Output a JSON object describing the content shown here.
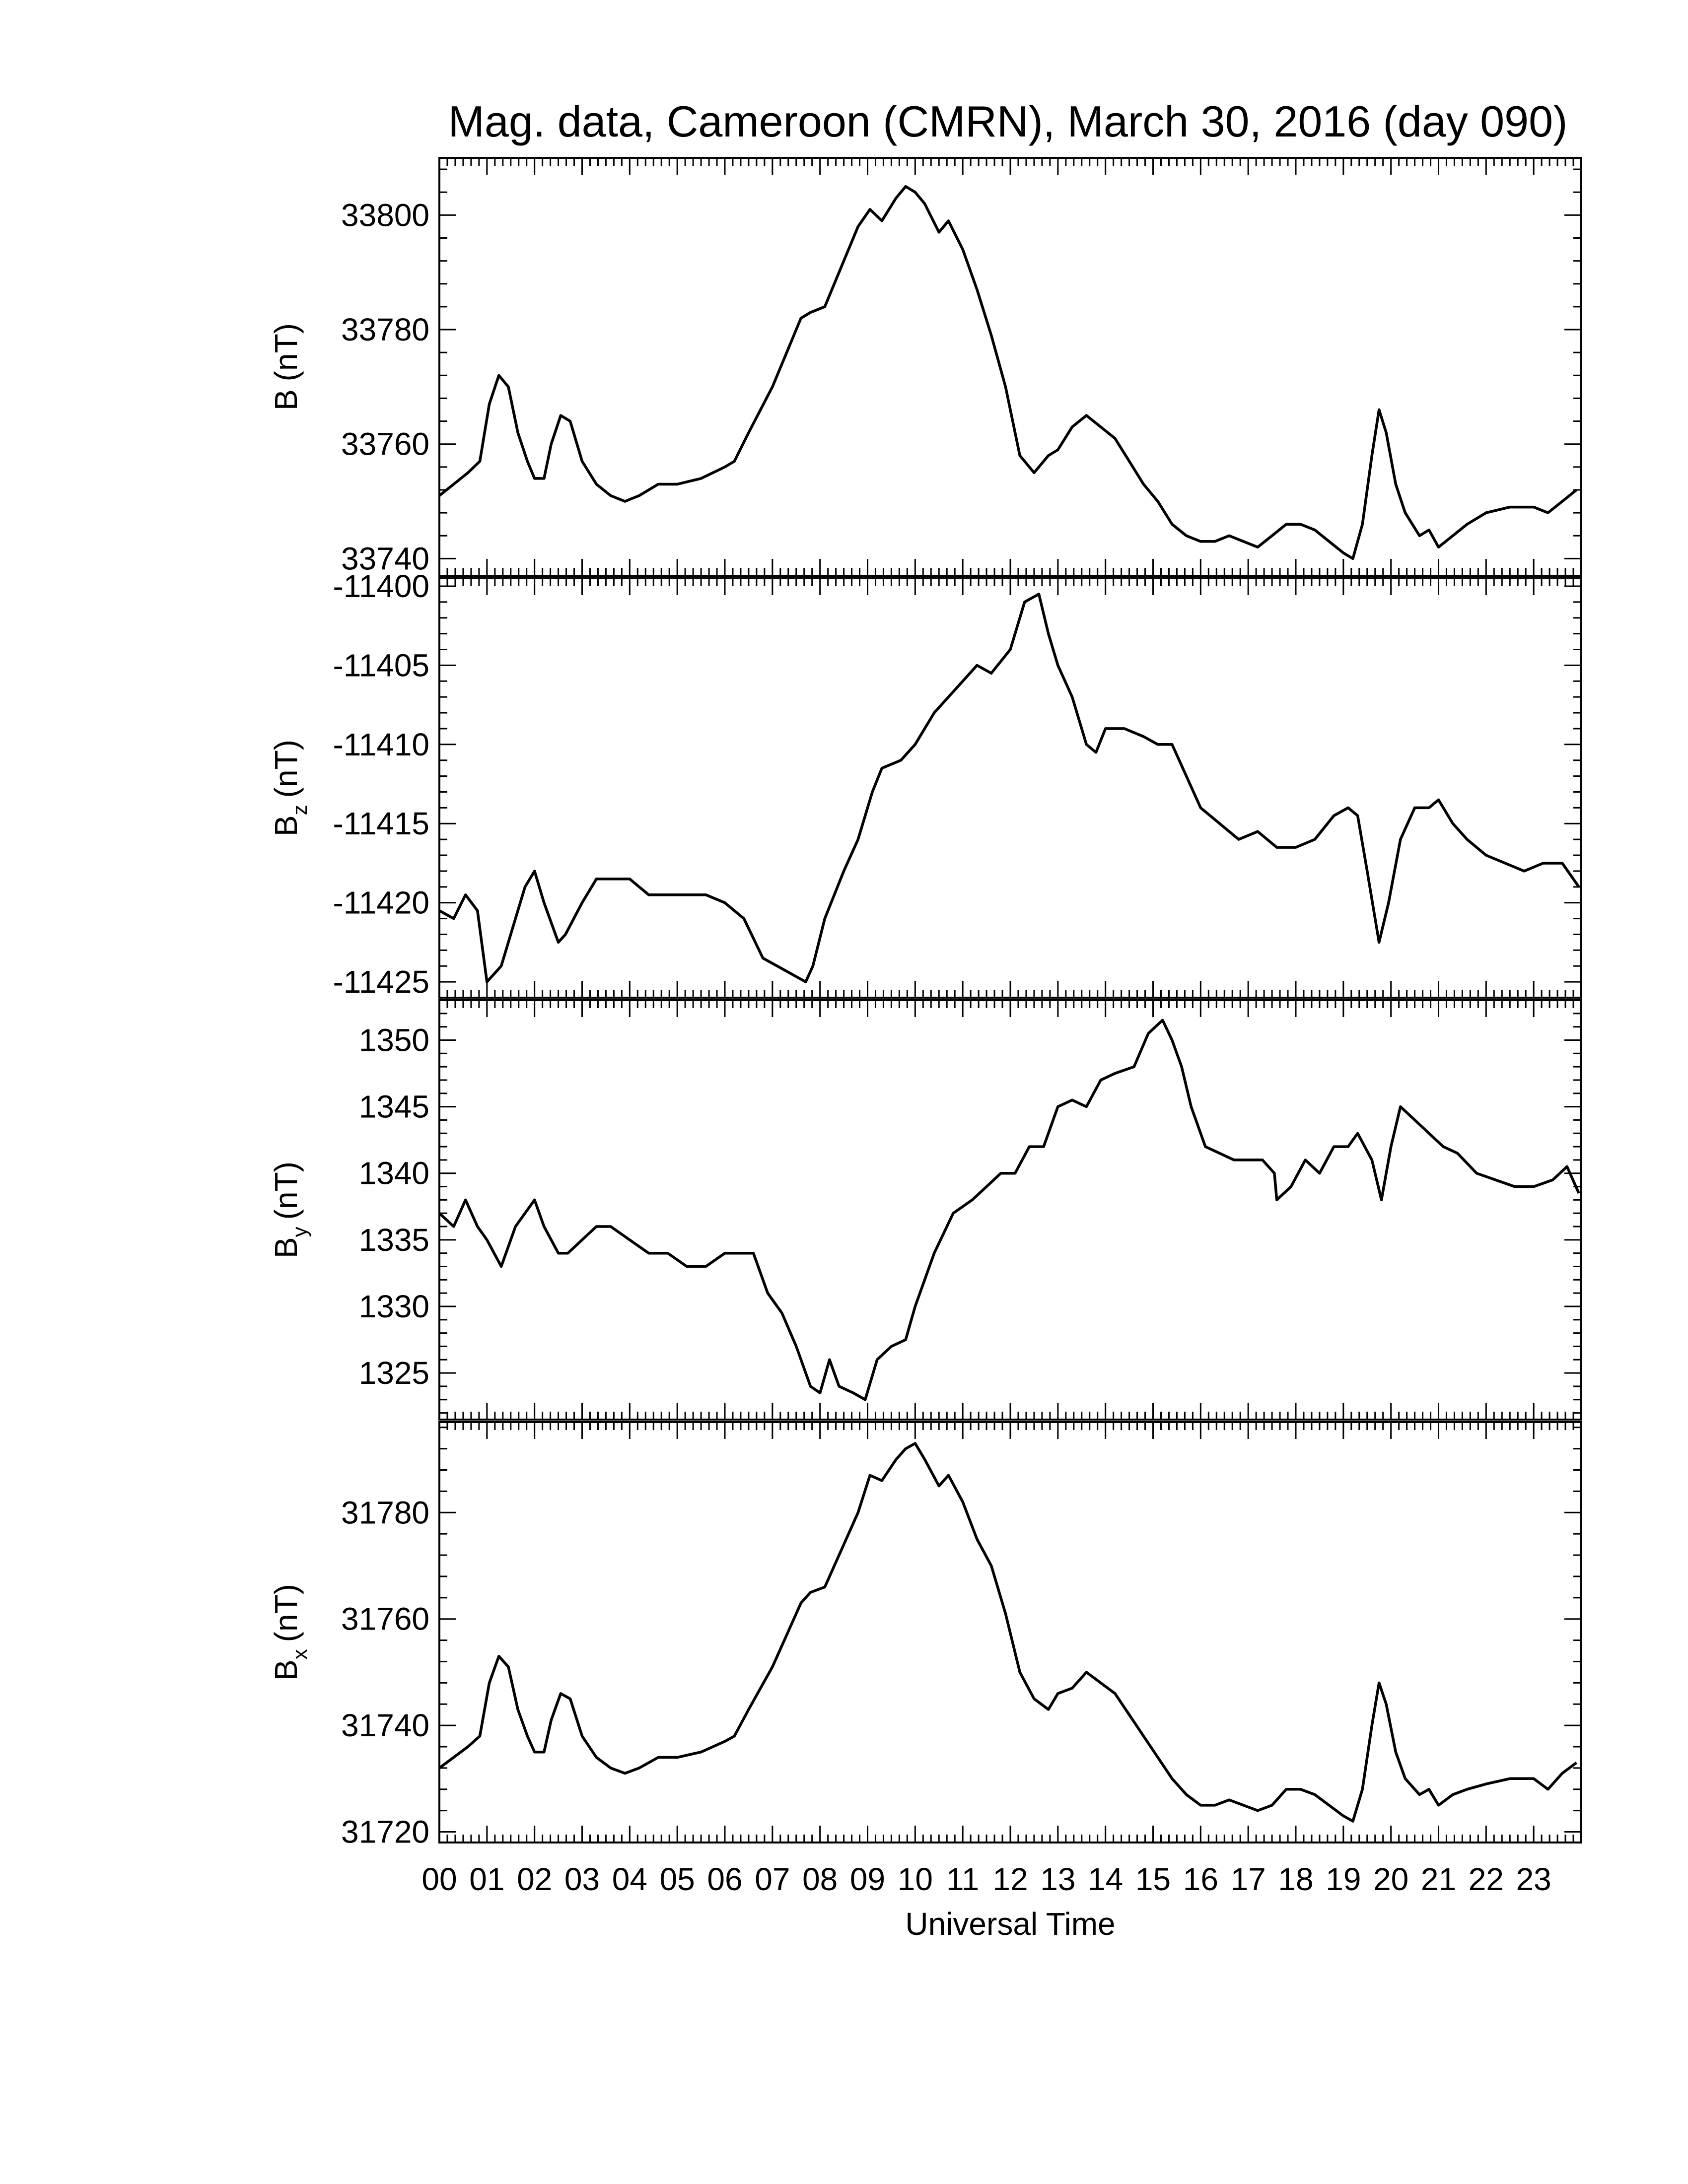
{
  "figure": {
    "title": "Mag. data, Cameroon (CMRN), March 30, 2016 (day 090)",
    "xlabel": "Universal Time",
    "x_tick_labels": [
      "00",
      "01",
      "02",
      "03",
      "04",
      "05",
      "06",
      "07",
      "08",
      "09",
      "10",
      "11",
      "12",
      "13",
      "14",
      "15",
      "16",
      "17",
      "18",
      "19",
      "20",
      "21",
      "22",
      "23"
    ]
  },
  "chart_data": [
    {
      "type": "line",
      "ylabel": "B (nT)",
      "ylabel_main": "B",
      "ylabel_sub": "",
      "ylabel_unit": "(nT)",
      "xlim": [
        0,
        24
      ],
      "ylim": [
        33737,
        33810
      ],
      "y_ticks": [
        33740,
        33760,
        33780,
        33800
      ],
      "x_unit": "hours UT",
      "x": [
        0,
        0.3,
        0.6,
        0.85,
        1.05,
        1.25,
        1.45,
        1.65,
        1.85,
        2.0,
        2.2,
        2.35,
        2.55,
        2.75,
        3.0,
        3.3,
        3.6,
        3.9,
        4.2,
        4.6,
        5.0,
        5.5,
        6.0,
        6.2,
        6.5,
        7.0,
        7.3,
        7.6,
        7.8,
        8.1,
        8.5,
        8.8,
        9.05,
        9.3,
        9.6,
        9.8,
        10.0,
        10.2,
        10.5,
        10.7,
        11.0,
        11.3,
        11.6,
        11.9,
        12.2,
        12.5,
        12.8,
        13.0,
        13.3,
        13.6,
        13.9,
        14.2,
        14.5,
        14.8,
        15.1,
        15.4,
        15.7,
        16.0,
        16.3,
        16.6,
        16.9,
        17.2,
        17.5,
        17.8,
        18.1,
        18.4,
        18.7,
        19.0,
        19.2,
        19.4,
        19.6,
        19.75,
        19.9,
        20.1,
        20.3,
        20.6,
        20.8,
        21.0,
        21.3,
        21.6,
        22.0,
        22.5,
        23.0,
        23.3,
        23.6,
        23.9
      ],
      "y": [
        33751,
        33753,
        33755,
        33757,
        33767,
        33772,
        33770,
        33762,
        33757,
        33754,
        33754,
        33760,
        33765,
        33764,
        33757,
        33753,
        33751,
        33750,
        33751,
        33753,
        33753,
        33754,
        33756,
        33757,
        33762,
        33770,
        33776,
        33782,
        33783,
        33784,
        33792,
        33798,
        33801,
        33799,
        33803,
        33805,
        33804,
        33802,
        33797,
        33799,
        33794,
        33787,
        33779,
        33770,
        33758,
        33755,
        33758,
        33759,
        33763,
        33765,
        33763,
        33761,
        33757,
        33753,
        33750,
        33746,
        33744,
        33743,
        33743,
        33744,
        33743,
        33742,
        33744,
        33746,
        33746,
        33745,
        33743,
        33741,
        33740,
        33746,
        33758,
        33766,
        33762,
        33753,
        33748,
        33744,
        33745,
        33742,
        33744,
        33746,
        33748,
        33749,
        33749,
        33748,
        33750,
        33752
      ]
    },
    {
      "type": "line",
      "ylabel": "Bz (nT)",
      "ylabel_main": "B",
      "ylabel_sub": "z",
      "ylabel_unit": "(nT)",
      "xlim": [
        0,
        24
      ],
      "ylim": [
        -11426,
        -11399.5
      ],
      "y_ticks": [
        -11400,
        -11405,
        -11410,
        -11415,
        -11420,
        -11425
      ],
      "x": [
        0,
        0.3,
        0.55,
        0.8,
        1.0,
        1.3,
        1.6,
        1.8,
        2.0,
        2.2,
        2.5,
        2.65,
        3.0,
        3.3,
        3.6,
        4.0,
        4.4,
        4.8,
        5.2,
        5.6,
        6.0,
        6.4,
        6.8,
        7.1,
        7.4,
        7.7,
        7.85,
        8.1,
        8.5,
        8.8,
        9.1,
        9.3,
        9.7,
        10.0,
        10.4,
        10.7,
        11.0,
        11.3,
        11.6,
        12.0,
        12.3,
        12.6,
        12.8,
        13.0,
        13.3,
        13.6,
        13.8,
        14.0,
        14.4,
        14.8,
        15.1,
        15.4,
        15.7,
        16.0,
        16.4,
        16.8,
        17.2,
        17.6,
        18.0,
        18.4,
        18.8,
        19.1,
        19.3,
        19.5,
        19.75,
        19.95,
        20.2,
        20.5,
        20.8,
        21.0,
        21.3,
        21.6,
        22.0,
        22.4,
        22.8,
        23.2,
        23.6,
        23.95
      ],
      "y": [
        -11420.5,
        -11421,
        -11419.5,
        -11420.5,
        -11425,
        -11424,
        -11421,
        -11419,
        -11418,
        -11420,
        -11422.5,
        -11422,
        -11420,
        -11418.5,
        -11418.5,
        -11418.5,
        -11419.5,
        -11419.5,
        -11419.5,
        -11419.5,
        -11420,
        -11421,
        -11423.5,
        -11424,
        -11424.5,
        -11425,
        -11424,
        -11421,
        -11418,
        -11416,
        -11413,
        -11411.5,
        -11411,
        -11410,
        -11408,
        -11407,
        -11406,
        -11405,
        -11405.5,
        -11404,
        -11401,
        -11400.5,
        -11403,
        -11405,
        -11407,
        -11410,
        -11410.5,
        -11409,
        -11409,
        -11409.5,
        -11410,
        -11410,
        -11412,
        -11414,
        -11415,
        -11416,
        -11415.5,
        -11416.5,
        -11416.5,
        -11416,
        -11414.5,
        -11414,
        -11414.5,
        -11418,
        -11422.5,
        -11420,
        -11416,
        -11414,
        -11414,
        -11413.5,
        -11415,
        -11416,
        -11417,
        -11417.5,
        -11418,
        -11417.5,
        -11417.5,
        -11419
      ]
    },
    {
      "type": "line",
      "ylabel": "By (nT)",
      "ylabel_main": "B",
      "ylabel_sub": "y",
      "ylabel_unit": "(nT)",
      "xlim": [
        0,
        24
      ],
      "ylim": [
        1321.5,
        1353
      ],
      "y_ticks": [
        1325,
        1330,
        1335,
        1340,
        1345,
        1350
      ],
      "x": [
        0,
        0.3,
        0.55,
        0.8,
        1.0,
        1.3,
        1.6,
        1.8,
        2.0,
        2.2,
        2.5,
        2.7,
        3.0,
        3.3,
        3.6,
        4.0,
        4.4,
        4.8,
        5.2,
        5.6,
        6.0,
        6.3,
        6.6,
        6.9,
        7.2,
        7.5,
        7.8,
        8.0,
        8.2,
        8.4,
        8.7,
        8.95,
        9.2,
        9.5,
        9.8,
        10.0,
        10.4,
        10.8,
        11.2,
        11.5,
        11.8,
        12.1,
        12.4,
        12.7,
        13.0,
        13.3,
        13.6,
        13.9,
        14.2,
        14.6,
        14.9,
        15.2,
        15.4,
        15.6,
        15.8,
        16.1,
        16.4,
        16.7,
        17.0,
        17.3,
        17.55,
        17.6,
        17.9,
        18.2,
        18.5,
        18.8,
        19.1,
        19.3,
        19.6,
        19.8,
        20.0,
        20.2,
        20.5,
        20.8,
        21.1,
        21.4,
        21.8,
        22.2,
        22.6,
        23.0,
        23.4,
        23.7,
        23.95
      ],
      "y": [
        1337,
        1336,
        1338,
        1336,
        1335,
        1333,
        1336,
        1337,
        1338,
        1336,
        1334,
        1334,
        1335,
        1336,
        1336,
        1335,
        1334,
        1334,
        1333,
        1333,
        1334,
        1334,
        1334,
        1331,
        1329.5,
        1327,
        1324,
        1323.5,
        1326,
        1324,
        1323.5,
        1323,
        1326,
        1327,
        1327.5,
        1330,
        1334,
        1337,
        1338,
        1339,
        1340,
        1340,
        1342,
        1342,
        1345,
        1345.5,
        1345,
        1347,
        1347.5,
        1348,
        1350.5,
        1351.5,
        1350,
        1348,
        1345,
        1342,
        1341.5,
        1341,
        1341,
        1341,
        1340,
        1338,
        1339,
        1341,
        1340,
        1342,
        1342,
        1343,
        1341,
        1338,
        1342,
        1345,
        1344,
        1343,
        1342,
        1341.5,
        1340,
        1339.5,
        1339,
        1339,
        1339.5,
        1340.5,
        1338.5
      ]
    },
    {
      "type": "line",
      "ylabel": "Bx (nT)",
      "ylabel_main": "B",
      "ylabel_sub": "x",
      "ylabel_unit": "(nT)",
      "xlim": [
        0,
        24
      ],
      "ylim": [
        31718,
        31797
      ],
      "y_ticks": [
        31720,
        31740,
        31760,
        31780
      ],
      "x": [
        0,
        0.3,
        0.6,
        0.85,
        1.05,
        1.25,
        1.45,
        1.65,
        1.85,
        2.0,
        2.2,
        2.35,
        2.55,
        2.75,
        3.0,
        3.3,
        3.6,
        3.9,
        4.2,
        4.6,
        5.0,
        5.5,
        6.0,
        6.2,
        6.5,
        7.0,
        7.3,
        7.6,
        7.8,
        8.1,
        8.5,
        8.8,
        9.05,
        9.3,
        9.6,
        9.8,
        10.0,
        10.2,
        10.5,
        10.7,
        11.0,
        11.3,
        11.6,
        11.9,
        12.2,
        12.5,
        12.8,
        13.0,
        13.3,
        13.6,
        13.9,
        14.2,
        14.5,
        14.8,
        15.1,
        15.4,
        15.7,
        16.0,
        16.3,
        16.6,
        16.9,
        17.2,
        17.5,
        17.8,
        18.1,
        18.4,
        18.7,
        19.0,
        19.2,
        19.4,
        19.6,
        19.75,
        19.9,
        20.1,
        20.3,
        20.6,
        20.8,
        21.0,
        21.3,
        21.6,
        22.0,
        22.5,
        23.0,
        23.3,
        23.6,
        23.9
      ],
      "y": [
        31732,
        31734,
        31736,
        31738,
        31748,
        31753,
        31751,
        31743,
        31738,
        31735,
        31735,
        31741,
        31746,
        31745,
        31738,
        31734,
        31732,
        31731,
        31732,
        31734,
        31734,
        31735,
        31737,
        31738,
        31743,
        31751,
        31757,
        31763,
        31765,
        31766,
        31774,
        31780,
        31787,
        31786,
        31790,
        31792,
        31793,
        31790,
        31785,
        31787,
        31782,
        31775,
        31770,
        31761,
        31750,
        31745,
        31743,
        31746,
        31747,
        31750,
        31748,
        31746,
        31742,
        31738,
        31734,
        31730,
        31727,
        31725,
        31725,
        31726,
        31725,
        31724,
        31725,
        31728,
        31728,
        31727,
        31725,
        31723,
        31722,
        31728,
        31740,
        31748,
        31744,
        31735,
        31730,
        31727,
        31728,
        31725,
        31727,
        31728,
        31729,
        31730,
        31730,
        31728,
        31731,
        31733
      ]
    }
  ]
}
